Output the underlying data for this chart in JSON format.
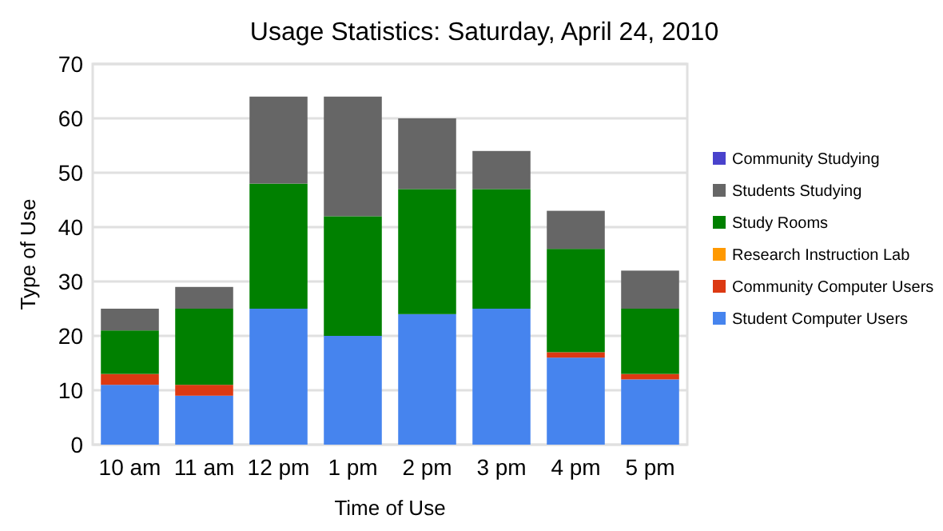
{
  "chart_data": {
    "type": "bar",
    "stacked": true,
    "title": "Usage Statistics: Saturday, April 24, 2010",
    "xlabel": "Time of Use",
    "ylabel": "Type of Use",
    "categories": [
      "10 am",
      "11 am",
      "12 pm",
      "1 pm",
      "2 pm",
      "3 pm",
      "4 pm",
      "5 pm"
    ],
    "series": [
      {
        "name": "Student Computer Users",
        "color": "#4684ee",
        "values": [
          11,
          9,
          25,
          20,
          24,
          25,
          16,
          12
        ]
      },
      {
        "name": "Community Computer Users",
        "color": "#dc3912",
        "values": [
          2,
          2,
          0,
          0,
          0,
          0,
          1,
          1
        ]
      },
      {
        "name": "Research Instruction Lab",
        "color": "#ff9900",
        "values": [
          0,
          0,
          0,
          0,
          0,
          0,
          0,
          0
        ]
      },
      {
        "name": "Study Rooms",
        "color": "#008000",
        "values": [
          8,
          14,
          23,
          22,
          23,
          22,
          19,
          12
        ]
      },
      {
        "name": "Students Studying",
        "color": "#666666",
        "values": [
          4,
          4,
          16,
          22,
          13,
          7,
          7,
          7
        ]
      },
      {
        "name": "Community Studying",
        "color": "#4942cc",
        "values": [
          0,
          0,
          0,
          0,
          0,
          0,
          0,
          0
        ]
      }
    ],
    "ylim": [
      0,
      70
    ],
    "yticks": [
      0,
      10,
      20,
      30,
      40,
      50,
      60,
      70
    ],
    "grid": "y",
    "legend": "right"
  }
}
